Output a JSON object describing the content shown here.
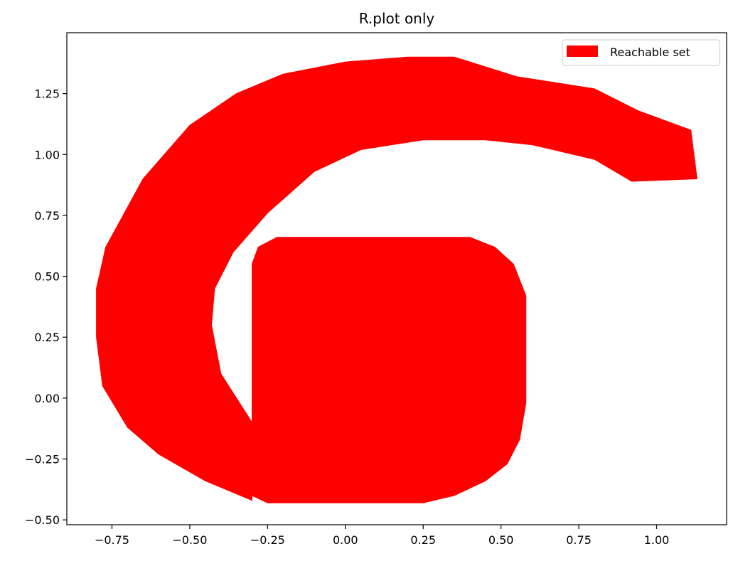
{
  "chart_data": {
    "type": "area",
    "title": "R.plot only",
    "xlabel": "",
    "ylabel": "",
    "xlim": [
      -0.895,
      1.225
    ],
    "ylim": [
      -0.52,
      1.5
    ],
    "x_ticks": [
      -0.75,
      -0.5,
      -0.25,
      0.0,
      0.25,
      0.5,
      0.75,
      1.0
    ],
    "x_tick_labels": [
      "−0.75",
      "−0.50",
      "−0.25",
      "0.00",
      "0.25",
      "0.50",
      "0.75",
      "1.00"
    ],
    "y_ticks": [
      -0.5,
      -0.25,
      0.0,
      0.25,
      0.5,
      0.75,
      1.0,
      1.25
    ],
    "y_tick_labels": [
      "−0.50",
      "−0.25",
      "0.00",
      "0.25",
      "0.50",
      "0.75",
      "1.00",
      "1.25"
    ],
    "grid": false,
    "legend": {
      "position": "top-right",
      "label": "Reachable set"
    },
    "series": [
      {
        "name": "Reachable set",
        "color": "#ff0000",
        "regions": [
          {
            "part": "outer spiral arm",
            "polygon": [
              [
                1.13,
                0.9
              ],
              [
                1.11,
                1.1
              ],
              [
                0.94,
                1.18
              ],
              [
                0.8,
                1.27
              ],
              [
                0.55,
                1.32
              ],
              [
                0.35,
                1.4
              ],
              [
                0.2,
                1.4
              ],
              [
                0.0,
                1.38
              ],
              [
                -0.2,
                1.33
              ],
              [
                -0.35,
                1.25
              ],
              [
                -0.5,
                1.12
              ],
              [
                -0.65,
                0.9
              ],
              [
                -0.77,
                0.62
              ],
              [
                -0.8,
                0.45
              ],
              [
                -0.8,
                0.25
              ],
              [
                -0.78,
                0.05
              ],
              [
                -0.7,
                -0.12
              ],
              [
                -0.6,
                -0.23
              ],
              [
                -0.45,
                -0.34
              ],
              [
                -0.3,
                -0.42
              ],
              [
                -0.3,
                -0.1
              ],
              [
                -0.4,
                0.1
              ],
              [
                -0.43,
                0.3
              ],
              [
                -0.42,
                0.45
              ],
              [
                -0.36,
                0.6
              ],
              [
                -0.25,
                0.76
              ],
              [
                -0.1,
                0.93
              ],
              [
                0.05,
                1.02
              ],
              [
                0.25,
                1.06
              ],
              [
                0.45,
                1.06
              ],
              [
                0.6,
                1.04
              ],
              [
                0.8,
                0.98
              ],
              [
                0.92,
                0.89
              ]
            ]
          },
          {
            "part": "inner rounded block",
            "polygon": [
              [
                -0.3,
                0.55
              ],
              [
                -0.28,
                0.62
              ],
              [
                -0.22,
                0.66
              ],
              [
                0.4,
                0.66
              ],
              [
                0.48,
                0.62
              ],
              [
                0.54,
                0.55
              ],
              [
                0.58,
                0.42
              ],
              [
                0.58,
                -0.02
              ],
              [
                0.56,
                -0.17
              ],
              [
                0.52,
                -0.27
              ],
              [
                0.45,
                -0.34
              ],
              [
                0.35,
                -0.4
              ],
              [
                0.25,
                -0.43
              ],
              [
                -0.25,
                -0.43
              ],
              [
                -0.3,
                -0.4
              ]
            ]
          }
        ]
      }
    ]
  }
}
